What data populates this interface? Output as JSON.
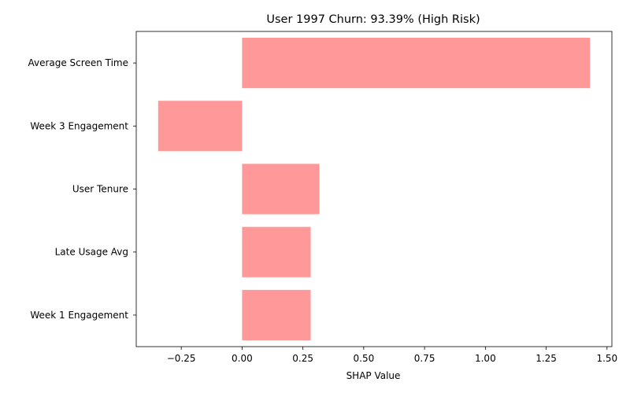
{
  "chart_data": {
    "type": "bar",
    "orientation": "horizontal",
    "title": "User 1997 Churn: 93.39% (High Risk)",
    "xlabel": "SHAP Value",
    "ylabel": "",
    "categories": [
      "Average Screen Time",
      "Week 3 Engagement",
      "User Tenure",
      "Late Usage Avg",
      "Week 1 Engagement"
    ],
    "values": [
      1.43,
      -0.345,
      0.318,
      0.282,
      0.282
    ],
    "xlim": [
      -0.435,
      1.52
    ],
    "xticks": [
      -0.25,
      0.0,
      0.25,
      0.5,
      0.75,
      1.0,
      1.25,
      1.5
    ],
    "xtick_labels": [
      "−0.25",
      "0.00",
      "0.25",
      "0.50",
      "0.75",
      "1.00",
      "1.25",
      "1.50"
    ],
    "bar_color": "#ff9999",
    "grid": false,
    "legend": false
  }
}
